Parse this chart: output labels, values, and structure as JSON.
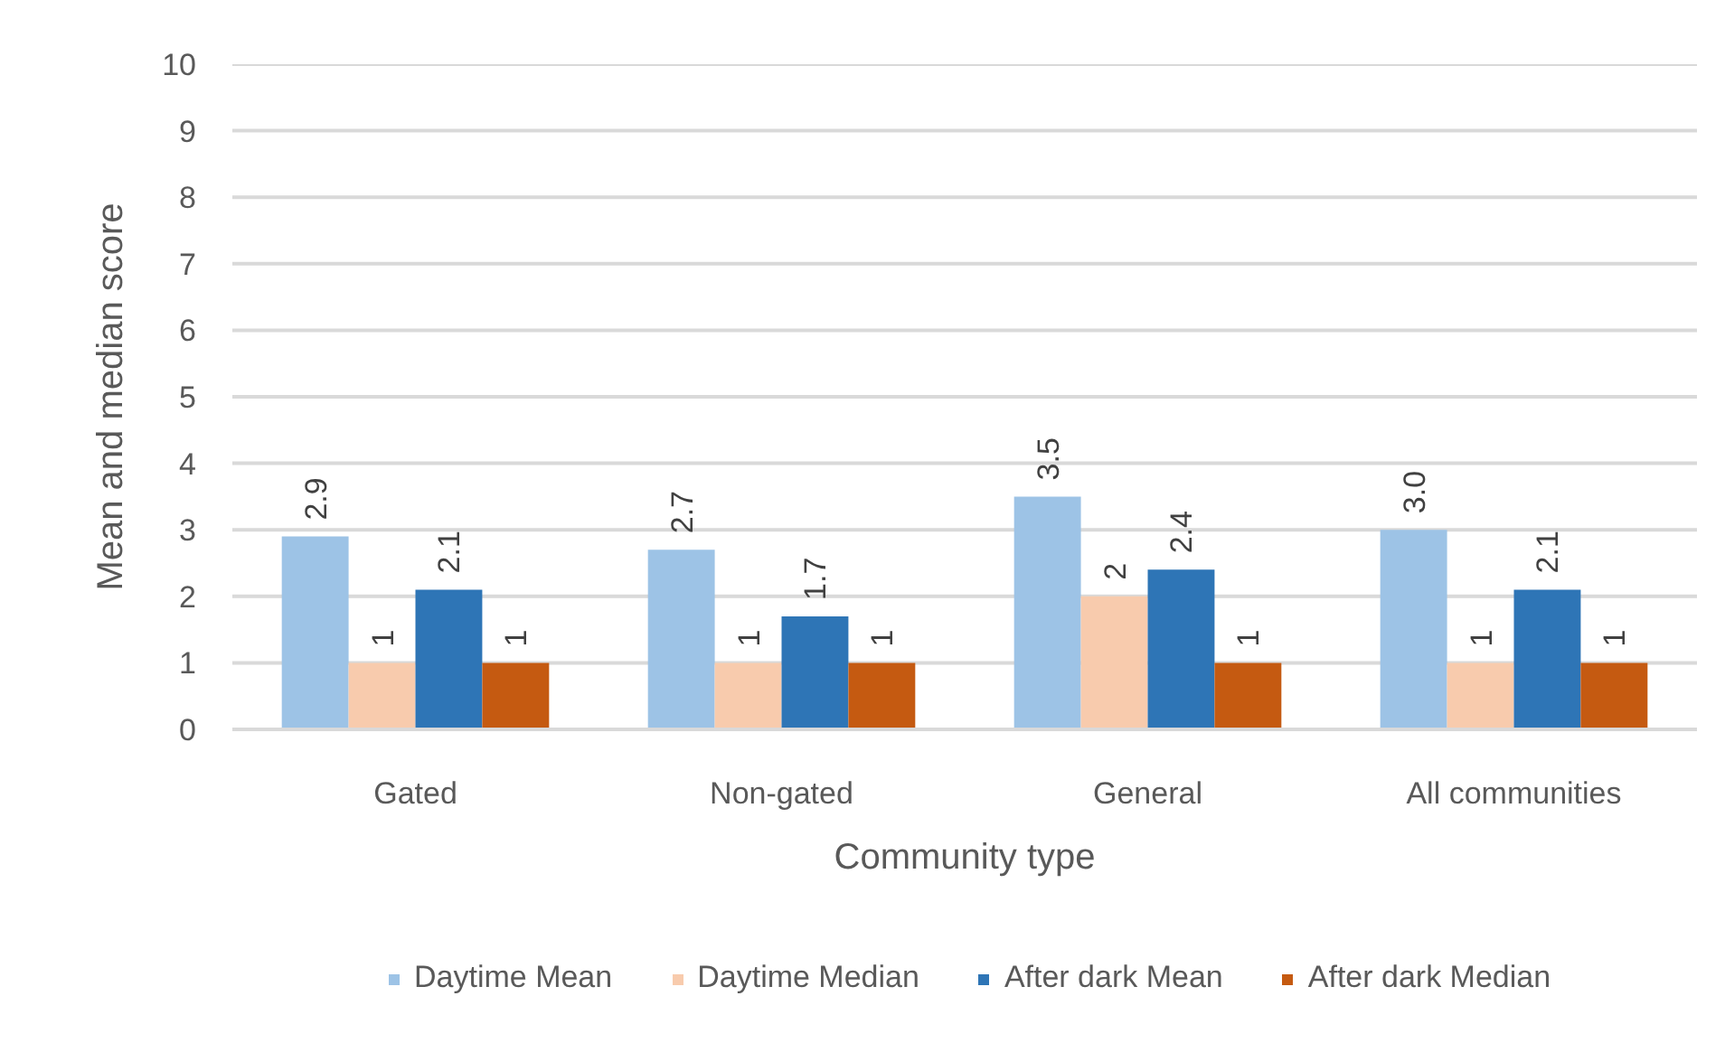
{
  "chart_data": {
    "type": "bar",
    "xlabel": "Community type",
    "ylabel": "Mean and median score",
    "categories": [
      "Gated",
      "Non-gated",
      "General",
      "All communities"
    ],
    "series": [
      {
        "name": "Daytime Mean",
        "color": "#9dc3e6",
        "values": [
          2.9,
          2.7,
          3.5,
          3.0
        ],
        "value_labels": [
          "2.9",
          "2.7",
          "3.5",
          "3.0"
        ]
      },
      {
        "name": "Daytime Median",
        "color": "#f8cbad",
        "values": [
          1,
          1,
          2,
          1
        ],
        "value_labels": [
          "1",
          "1",
          "2",
          "1"
        ]
      },
      {
        "name": "After dark Mean",
        "color": "#2e75b6",
        "values": [
          2.1,
          1.7,
          2.4,
          2.1
        ],
        "value_labels": [
          "2.1",
          "1.7",
          "2.4",
          "2.1"
        ]
      },
      {
        "name": "After dark Median",
        "color": "#c55a11",
        "values": [
          1,
          1,
          1,
          1
        ],
        "value_labels": [
          "1",
          "1",
          "1",
          "1"
        ]
      }
    ],
    "ylim": [
      0,
      10
    ],
    "yticks": [
      0,
      1,
      2,
      3,
      4,
      5,
      6,
      7,
      8,
      9,
      10
    ],
    "grid": "y",
    "legend": "bottom"
  }
}
